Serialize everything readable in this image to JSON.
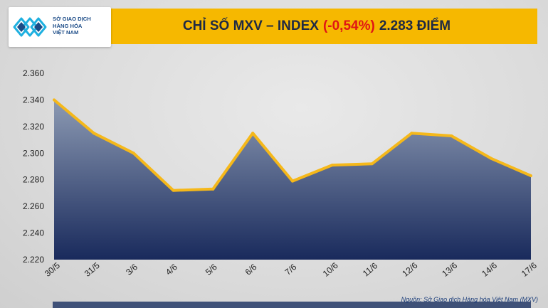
{
  "header": {
    "logo_lines": [
      "SỞ GIAO DỊCH",
      "HÀNG HÓA",
      "VIỆT NAM"
    ],
    "title_prefix": "CHỈ SỐ MXV – INDEX",
    "title_change": "(-0,54%)",
    "title_value": "2.283 ĐIỂM"
  },
  "source_note": "Nguồn: Sở Giao dịch Hàng hóa Việt Nam (MXV)",
  "colors": {
    "banner": "#f6b800",
    "line": "#f5b81a",
    "area_top": "#8c9ab3",
    "area_bottom": "#192a5c",
    "change_red": "#e01515",
    "logo_blue": "#1b4b87"
  },
  "icons": {
    "logo": "mxv-logo-icon"
  },
  "chart_data": {
    "type": "area",
    "categories": [
      "30/5",
      "31/5",
      "3/6",
      "4/6",
      "5/6",
      "6/6",
      "7/6",
      "10/6",
      "11/6",
      "12/6",
      "13/6",
      "14/6",
      "17/6"
    ],
    "values": [
      2340,
      2315,
      2300,
      2272,
      2273,
      2315,
      2279,
      2291,
      2292,
      2315,
      2313,
      2296,
      2283
    ],
    "y_ticks": [
      "2.360",
      "2.340",
      "2.320",
      "2.300",
      "2.280",
      "2.260",
      "2.240",
      "2.220"
    ],
    "ylim": [
      2220,
      2360
    ],
    "grid": false,
    "legend": "none"
  }
}
